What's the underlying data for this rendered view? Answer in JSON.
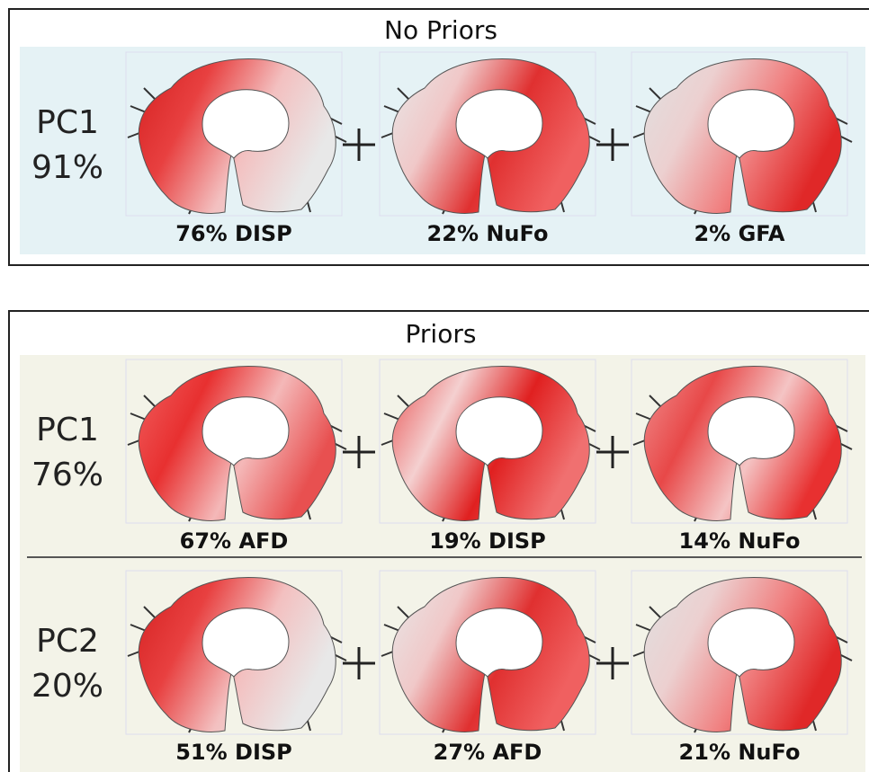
{
  "panels": [
    {
      "title": "No Priors",
      "rows": [
        {
          "pc": "PC1",
          "variance": "91%",
          "components": [
            "76% DISP",
            "22% NuFo",
            "2% GFA"
          ]
        }
      ]
    },
    {
      "title": "Priors",
      "rows": [
        {
          "pc": "PC1",
          "variance": "76%",
          "components": [
            "67% AFD",
            "19% DISP",
            "14% NuFo"
          ]
        },
        {
          "pc": "PC2",
          "variance": "20%",
          "components": [
            "51% DISP",
            "27% AFD",
            "21% NuFo"
          ]
        }
      ]
    }
  ]
}
